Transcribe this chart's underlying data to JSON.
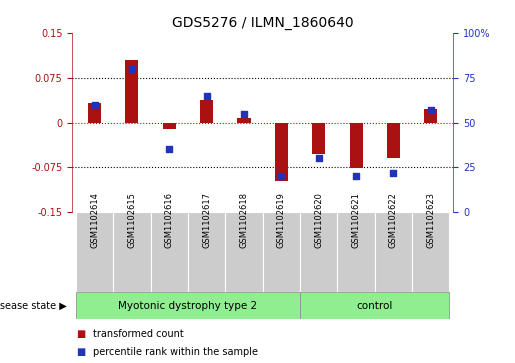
{
  "title": "GDS5276 / ILMN_1860640",
  "categories": [
    "GSM1102614",
    "GSM1102615",
    "GSM1102616",
    "GSM1102617",
    "GSM1102618",
    "GSM1102619",
    "GSM1102620",
    "GSM1102621",
    "GSM1102622",
    "GSM1102623"
  ],
  "bar_values": [
    0.033,
    0.105,
    -0.01,
    0.038,
    0.008,
    -0.098,
    -0.053,
    -0.076,
    -0.06,
    0.022
  ],
  "dot_values": [
    60,
    80,
    35,
    65,
    55,
    20,
    30,
    20,
    22,
    57
  ],
  "ylim_left": [
    -0.15,
    0.15
  ],
  "ylim_right": [
    0,
    100
  ],
  "yticks_left": [
    -0.15,
    -0.075,
    0,
    0.075,
    0.15
  ],
  "yticks_right": [
    0,
    25,
    50,
    75,
    100
  ],
  "ytick_labels_left": [
    "-0.15",
    "-0.075",
    "0",
    "0.075",
    "0.15"
  ],
  "ytick_labels_right": [
    "0",
    "25",
    "50",
    "75",
    "100%"
  ],
  "hlines": [
    0.075,
    -0.075
  ],
  "bar_color": "#aa1111",
  "dot_color": "#2233bb",
  "zero_line_color": "#cc0000",
  "group1_label": "Myotonic dystrophy type 2",
  "group2_label": "control",
  "group1_indices": [
    0,
    1,
    2,
    3,
    4,
    5
  ],
  "group2_indices": [
    6,
    7,
    8,
    9
  ],
  "group1_color": "#90ee90",
  "group2_color": "#90ee90",
  "disease_state_label": "disease state",
  "legend_bar_label": "transformed count",
  "legend_dot_label": "percentile rank within the sample",
  "bar_width": 0.35,
  "background_color": "#ffffff",
  "plot_bg_color": "#ffffff",
  "xticklabel_bg": "#cccccc"
}
